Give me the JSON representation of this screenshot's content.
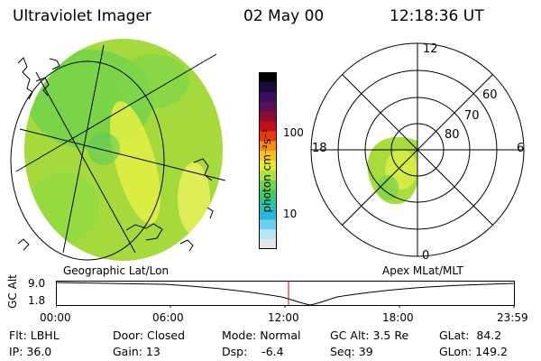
{
  "header": {
    "title": "Ultraviolet Imager",
    "date": "02 May 00",
    "time": "12:18:36 UT"
  },
  "geo_panel": {
    "label": "Geographic Lat/Lon"
  },
  "colorbar": {
    "unit_label": "photon cm⁻²s⁻¹",
    "ticks": [
      "100",
      "10"
    ],
    "colors": [
      "#000000",
      "#1b0b3a",
      "#3a0f5c",
      "#5b0f5a",
      "#8a0e34",
      "#c40f1b",
      "#e83a10",
      "#f78a10",
      "#f8c21a",
      "#e6ee2a",
      "#aee23a",
      "#6fd64a",
      "#3ecb6a",
      "#26c6a8",
      "#28b8dc",
      "#6ad0f0",
      "#b7e6f5",
      "#e6e6e6"
    ]
  },
  "polar_panel": {
    "label": "Apex MLat/MLT",
    "mlt_labels": [
      "12",
      "18",
      "6",
      "0"
    ],
    "lat_labels": [
      "60",
      "70",
      "80"
    ]
  },
  "altitude_plot": {
    "ylabel": "GC Alt",
    "y_ticks": [
      "9.0",
      "1.8"
    ],
    "x_ticks": [
      "00:00",
      "06:00",
      "12:00",
      "18:00",
      "23:59"
    ]
  },
  "info": {
    "row1": {
      "flt": "Flt: LBHL",
      "door": "Door: Closed",
      "mode": "Mode: Normal",
      "gcalt": "GC Alt: 3.5 Re",
      "glat": "GLat:  84.2"
    },
    "row2": {
      "ip": "IP: 36.0",
      "gain": "Gain: 13",
      "dsp": "Dsp:    -6.4",
      "seq": "Seq: 39",
      "glon": "GLon: 149.2"
    }
  }
}
